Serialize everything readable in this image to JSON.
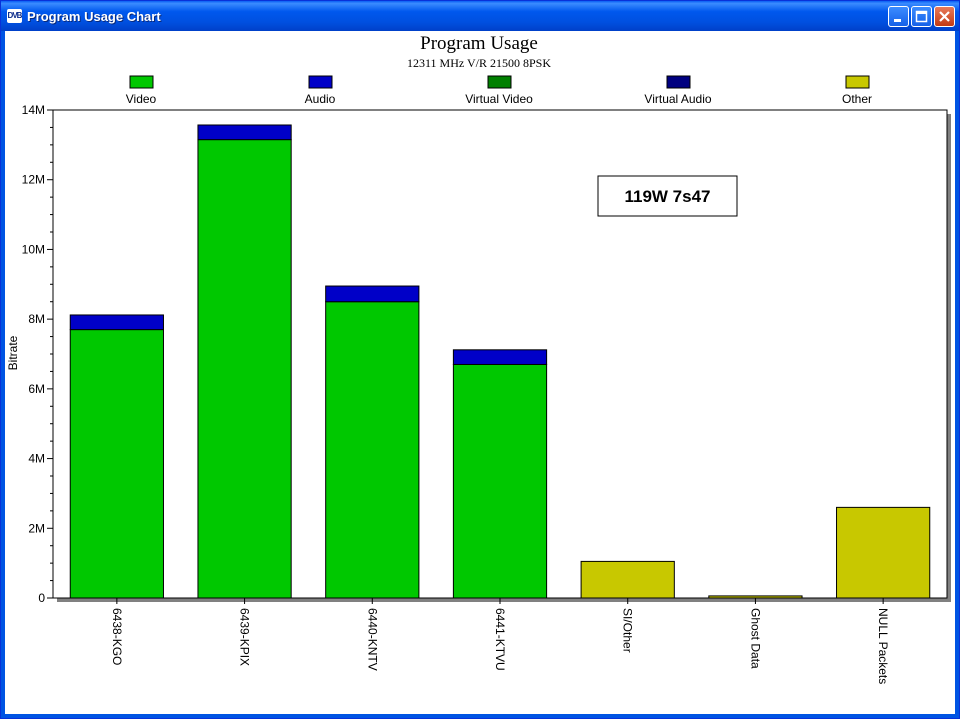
{
  "window": {
    "title": "Program Usage Chart",
    "icon": "dvb-logo-icon",
    "icon_text": "DVB"
  },
  "chart_data": {
    "type": "bar",
    "stacked": true,
    "title": "Program Usage",
    "subtitle": "12311 MHz V/R 21500 8PSK",
    "xlabel": "",
    "ylabel": "Bitrate",
    "ylim": [
      0,
      14000000
    ],
    "yticks": [
      0,
      2000000,
      4000000,
      6000000,
      8000000,
      10000000,
      12000000,
      14000000
    ],
    "ytick_labels": [
      "0",
      "2M",
      "4M",
      "6M",
      "8M",
      "10M",
      "12M",
      "14M"
    ],
    "categories": [
      "6438-KGO",
      "6439-KPIX",
      "6440-KNTV",
      "6441-KTVU",
      "SI/Other",
      "Ghost Data",
      "NULL Packets"
    ],
    "series": [
      {
        "name": "Video",
        "color": "#00c800",
        "values": [
          7700000,
          13150000,
          8500000,
          6700000,
          0,
          0,
          0
        ]
      },
      {
        "name": "Audio",
        "color": "#0000c8",
        "values": [
          420000,
          420000,
          450000,
          420000,
          0,
          0,
          0
        ]
      },
      {
        "name": "Virtual Video",
        "color": "#008000",
        "values": [
          0,
          0,
          0,
          0,
          0,
          0,
          0
        ]
      },
      {
        "name": "Virtual Audio",
        "color": "#000080",
        "values": [
          0,
          0,
          0,
          0,
          0,
          0,
          0
        ]
      },
      {
        "name": "Other",
        "color": "#c8c800",
        "values": [
          0,
          0,
          0,
          0,
          1050000,
          60000,
          2600000
        ]
      }
    ],
    "annotation": "119W 7s47",
    "legend_position": "top",
    "grid": false
  }
}
